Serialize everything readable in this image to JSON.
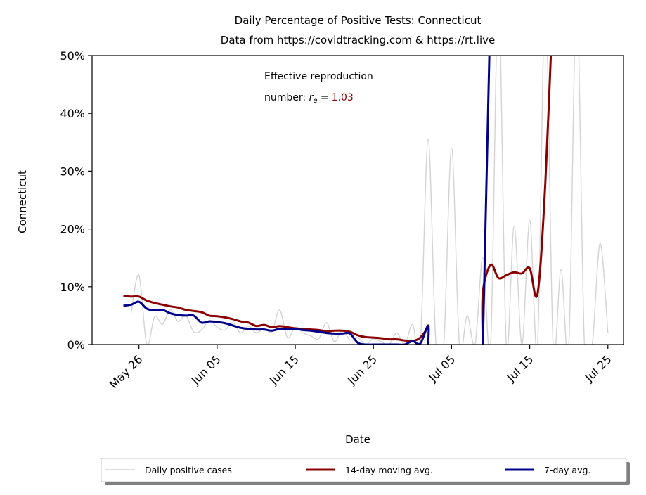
{
  "chart_data": {
    "type": "line",
    "title": "Daily Percentage of Positive Tests: Connecticut",
    "subtitle": "Data from https://covidtracking.com & https://rt.live",
    "xlabel": "Date",
    "ylabel": "Connecticut",
    "x_range": [
      "2020-05-20",
      "2020-07-27"
    ],
    "ylim": [
      0,
      50
    ],
    "x_ticks": [
      {
        "date": "2020-05-26",
        "label": "May 26"
      },
      {
        "date": "2020-06-05",
        "label": "Jun 05"
      },
      {
        "date": "2020-06-15",
        "label": "Jun 15"
      },
      {
        "date": "2020-06-25",
        "label": "Jun 25"
      },
      {
        "date": "2020-07-05",
        "label": "Jul 05"
      },
      {
        "date": "2020-07-15",
        "label": "Jul 15"
      },
      {
        "date": "2020-07-25",
        "label": "Jul 25"
      }
    ],
    "y_ticks": [
      {
        "value": 0,
        "label": "0%"
      },
      {
        "value": 10,
        "label": "10%"
      },
      {
        "value": 20,
        "label": "20%"
      },
      {
        "value": 30,
        "label": "30%"
      },
      {
        "value": 40,
        "label": "40%"
      },
      {
        "value": 50,
        "label": "50%"
      }
    ],
    "annotation": {
      "line1": "Effective reproduction",
      "line2_prefix": "number: ",
      "symbol_r": "r",
      "symbol_sub": "e",
      "equals": " =",
      "value": "1.03",
      "value_color": "#8b0000"
    },
    "legend_position": "bottom-center",
    "series": [
      {
        "name": "Daily positive cases",
        "color": "#d3d3d3",
        "points": [
          [
            "2020-05-25",
            5.5
          ],
          [
            "2020-05-26",
            12.0
          ],
          [
            "2020-05-27",
            0.0
          ],
          [
            "2020-05-28",
            4.8
          ],
          [
            "2020-05-29",
            3.5
          ],
          [
            "2020-05-30",
            6.0
          ],
          [
            "2020-05-31",
            4.0
          ],
          [
            "2020-06-01",
            5.0
          ],
          [
            "2020-06-02",
            2.2
          ],
          [
            "2020-06-03",
            2.5
          ],
          [
            "2020-06-04",
            4.2
          ],
          [
            "2020-06-05",
            3.0
          ],
          [
            "2020-06-06",
            2.5
          ],
          [
            "2020-06-07",
            3.8
          ],
          [
            "2020-06-08",
            2.0
          ],
          [
            "2020-06-09",
            3.2
          ],
          [
            "2020-06-10",
            2.0
          ],
          [
            "2020-06-11",
            2.8
          ],
          [
            "2020-06-12",
            2.2
          ],
          [
            "2020-06-13",
            6.0
          ],
          [
            "2020-06-14",
            1.2
          ],
          [
            "2020-06-15",
            3.0
          ],
          [
            "2020-06-16",
            2.0
          ],
          [
            "2020-06-17",
            1.5
          ],
          [
            "2020-06-18",
            1.0
          ],
          [
            "2020-06-19",
            3.8
          ],
          [
            "2020-06-20",
            0.5
          ],
          [
            "2020-06-21",
            2.5
          ],
          [
            "2020-06-22",
            0.8
          ],
          [
            "2020-06-23",
            1.2
          ],
          [
            "2020-06-24",
            0.0
          ],
          [
            "2020-06-25",
            1.0
          ],
          [
            "2020-06-26",
            0.5
          ],
          [
            "2020-06-27",
            0.0
          ],
          [
            "2020-06-28",
            2.0
          ],
          [
            "2020-06-29",
            0.0
          ],
          [
            "2020-06-30",
            3.5
          ],
          [
            "2020-07-01",
            0.0
          ],
          [
            "2020-07-02",
            35.5
          ],
          [
            "2020-07-03",
            0.0
          ],
          [
            "2020-07-04",
            0.0
          ],
          [
            "2020-07-05",
            34.0
          ],
          [
            "2020-07-06",
            0.0
          ],
          [
            "2020-07-07",
            5.0
          ],
          [
            "2020-07-08",
            0.0
          ],
          [
            "2020-07-09",
            15.0
          ],
          [
            "2020-07-10",
            0.0
          ],
          [
            "2020-07-11",
            60.0
          ],
          [
            "2020-07-12",
            0.0
          ],
          [
            "2020-07-13",
            20.5
          ],
          [
            "2020-07-14",
            0.0
          ],
          [
            "2020-07-15",
            21.5
          ],
          [
            "2020-07-16",
            0.0
          ],
          [
            "2020-07-17",
            60.0
          ],
          [
            "2020-07-18",
            0.0
          ],
          [
            "2020-07-19",
            13.0
          ],
          [
            "2020-07-20",
            0.0
          ],
          [
            "2020-07-21",
            60.0
          ],
          [
            "2020-07-22",
            0.0
          ],
          [
            "2020-07-23",
            0.0
          ],
          [
            "2020-07-24",
            17.5
          ],
          [
            "2020-07-25",
            2.0
          ]
        ]
      },
      {
        "name": "14-day moving avg.",
        "color": "#8b0000",
        "points": [
          [
            "2020-05-24",
            8.4
          ],
          [
            "2020-05-25",
            8.3
          ],
          [
            "2020-05-26",
            8.3
          ],
          [
            "2020-05-27",
            7.6
          ],
          [
            "2020-05-28",
            7.2
          ],
          [
            "2020-05-29",
            6.9
          ],
          [
            "2020-05-30",
            6.6
          ],
          [
            "2020-05-31",
            6.4
          ],
          [
            "2020-06-01",
            6.0
          ],
          [
            "2020-06-02",
            5.8
          ],
          [
            "2020-06-03",
            5.6
          ],
          [
            "2020-06-04",
            5.0
          ],
          [
            "2020-06-05",
            4.9
          ],
          [
            "2020-06-06",
            4.7
          ],
          [
            "2020-06-07",
            4.4
          ],
          [
            "2020-06-08",
            4.0
          ],
          [
            "2020-06-09",
            3.8
          ],
          [
            "2020-06-10",
            3.2
          ],
          [
            "2020-06-11",
            3.4
          ],
          [
            "2020-06-12",
            3.0
          ],
          [
            "2020-06-13",
            3.2
          ],
          [
            "2020-06-14",
            3.0
          ],
          [
            "2020-06-15",
            2.8
          ],
          [
            "2020-06-16",
            2.7
          ],
          [
            "2020-06-17",
            2.6
          ],
          [
            "2020-06-18",
            2.5
          ],
          [
            "2020-06-19",
            2.3
          ],
          [
            "2020-06-20",
            2.4
          ],
          [
            "2020-06-21",
            2.4
          ],
          [
            "2020-06-22",
            2.2
          ],
          [
            "2020-06-23",
            1.6
          ],
          [
            "2020-06-24",
            1.3
          ],
          [
            "2020-06-25",
            1.2
          ],
          [
            "2020-06-26",
            1.1
          ],
          [
            "2020-06-27",
            0.9
          ],
          [
            "2020-06-28",
            0.9
          ],
          [
            "2020-06-29",
            0.7
          ],
          [
            "2020-06-30",
            0.6
          ],
          [
            "2020-07-01",
            1.2
          ],
          [
            "2020-07-02",
            3.0
          ],
          [
            null,
            null
          ],
          [
            "2020-07-09",
            0.0
          ],
          [
            "2020-07-09",
            9.0
          ],
          [
            "2020-07-10",
            13.8
          ],
          [
            "2020-07-11",
            11.5
          ],
          [
            "2020-07-12",
            12.0
          ],
          [
            "2020-07-13",
            12.5
          ],
          [
            "2020-07-14",
            12.3
          ],
          [
            "2020-07-15",
            13.2
          ],
          [
            "2020-07-16",
            8.8
          ],
          [
            "2020-07-17",
            28.0
          ],
          [
            "2020-07-18",
            60.0
          ]
        ]
      },
      {
        "name": "7-day avg.",
        "color": "#00008b",
        "points": [
          [
            "2020-05-24",
            6.7
          ],
          [
            "2020-05-25",
            6.9
          ],
          [
            "2020-05-26",
            7.4
          ],
          [
            "2020-05-27",
            6.2
          ],
          [
            "2020-05-28",
            5.9
          ],
          [
            "2020-05-29",
            6.0
          ],
          [
            "2020-05-30",
            5.4
          ],
          [
            "2020-05-31",
            5.1
          ],
          [
            "2020-06-01",
            5.0
          ],
          [
            "2020-06-02",
            5.0
          ],
          [
            "2020-06-03",
            3.8
          ],
          [
            "2020-06-04",
            4.0
          ],
          [
            "2020-06-05",
            3.9
          ],
          [
            "2020-06-06",
            3.7
          ],
          [
            "2020-06-07",
            3.3
          ],
          [
            "2020-06-08",
            2.9
          ],
          [
            "2020-06-09",
            2.7
          ],
          [
            "2020-06-10",
            2.6
          ],
          [
            "2020-06-11",
            2.6
          ],
          [
            "2020-06-12",
            2.4
          ],
          [
            "2020-06-13",
            2.7
          ],
          [
            "2020-06-14",
            2.6
          ],
          [
            "2020-06-15",
            2.7
          ],
          [
            "2020-06-16",
            2.5
          ],
          [
            "2020-06-17",
            2.4
          ],
          [
            "2020-06-18",
            2.2
          ],
          [
            "2020-06-19",
            2.0
          ],
          [
            "2020-06-20",
            1.9
          ],
          [
            "2020-06-21",
            1.9
          ],
          [
            "2020-06-22",
            1.9
          ],
          [
            "2020-06-23",
            0.3
          ],
          [
            "2020-06-24",
            0.0
          ],
          [
            "2020-06-25",
            0.0
          ],
          [
            "2020-06-26",
            0.0
          ],
          [
            "2020-06-27",
            0.0
          ],
          [
            "2020-06-28",
            0.0
          ],
          [
            "2020-06-29",
            0.0
          ],
          [
            "2020-06-30",
            0.6
          ],
          [
            "2020-07-01",
            0.2
          ],
          [
            "2020-07-02",
            3.3
          ],
          [
            "2020-07-02",
            0.0
          ],
          [
            null,
            null
          ],
          [
            "2020-07-09",
            0.0
          ],
          [
            "2020-07-10",
            60.0
          ]
        ]
      }
    ]
  }
}
